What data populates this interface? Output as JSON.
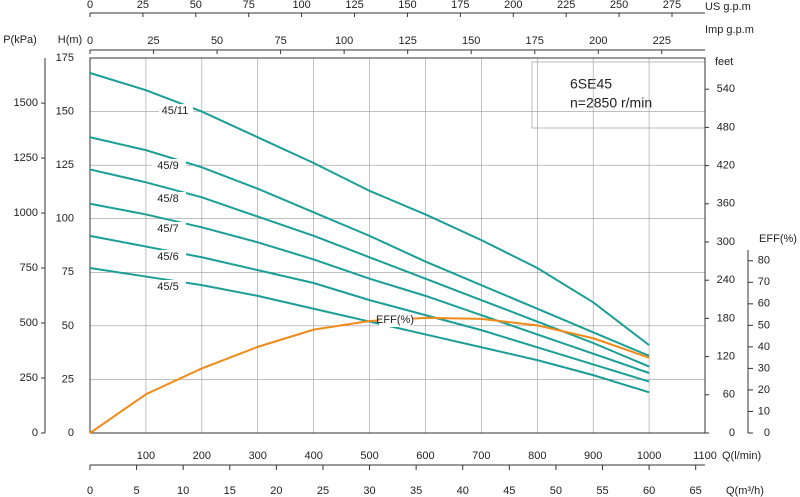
{
  "chart_data": {
    "type": "line",
    "xlabel": "Q(l/min)",
    "ylabel": "H(m)",
    "x": [
      0,
      100,
      200,
      300,
      400,
      500,
      600,
      700,
      800,
      900,
      1000
    ],
    "xlim": [
      0,
      1100
    ],
    "xticks": [
      100,
      200,
      300,
      400,
      500,
      600,
      700,
      800,
      900,
      1000,
      1100
    ],
    "ylim": [
      0,
      175
    ],
    "yticks": [
      0,
      25,
      50,
      75,
      100,
      125,
      150,
      175
    ],
    "grid": true,
    "series": [
      {
        "name": "45/11",
        "color": "#1a9e96",
        "values": [
          168,
          160,
          150,
          138,
          126,
          113,
          102,
          90,
          77,
          61,
          41
        ]
      },
      {
        "name": "45/9",
        "color": "#1a9e96",
        "values": [
          138,
          132,
          124,
          114,
          103,
          92,
          80,
          69,
          58,
          47,
          36
        ]
      },
      {
        "name": "45/8",
        "color": "#1a9e96",
        "values": [
          123,
          117,
          110,
          101,
          92,
          82,
          72,
          62,
          52,
          42,
          31
        ]
      },
      {
        "name": "45/7",
        "color": "#1a9e96",
        "values": [
          107,
          102,
          96,
          89,
          81,
          72,
          64,
          55,
          46,
          37,
          28
        ]
      },
      {
        "name": "45/6",
        "color": "#1a9e96",
        "values": [
          92,
          87,
          82,
          76,
          70,
          62,
          55,
          48,
          40,
          32,
          24
        ]
      },
      {
        "name": "45/5",
        "color": "#1a9e96",
        "values": [
          77,
          73,
          69,
          64,
          58,
          52,
          46,
          40,
          34,
          27,
          19
        ]
      },
      {
        "name": "EFF(%)",
        "color": "#f08a1a",
        "axis": "y2",
        "values": [
          0,
          18,
          30,
          40,
          48,
          52,
          53.5,
          53,
          50,
          44,
          35
        ]
      }
    ],
    "y2label": "EFF(%)",
    "y2lim": [
      0,
      85
    ],
    "y2ticks": [
      0,
      10,
      20,
      30,
      40,
      50,
      60,
      70,
      80
    ],
    "p_axis": {
      "label": "P(kPa)",
      "lim": [
        0,
        1705
      ],
      "ticks": [
        0,
        250,
        500,
        750,
        1000,
        1250,
        1500
      ]
    },
    "feet_axis": {
      "label": "feet",
      "lim": [
        0,
        589
      ],
      "ticks": [
        0,
        60,
        120,
        180,
        240,
        300,
        360,
        420,
        480,
        540
      ]
    },
    "us_axis": {
      "label": "US  g.p.m",
      "lim": [
        0,
        290.6
      ],
      "ticks": [
        0,
        25,
        50,
        75,
        100,
        125,
        150,
        175,
        200,
        225,
        250,
        275
      ]
    },
    "imp_axis": {
      "label": "Imp  g.p.m",
      "lim": [
        0,
        242
      ],
      "ticks": [
        0,
        25,
        50,
        75,
        100,
        125,
        150,
        175,
        200,
        225
      ]
    },
    "m3h_axis": {
      "label": "Q(m³/h)",
      "lim": [
        0,
        66
      ],
      "ticks": [
        0,
        5,
        10,
        15,
        20,
        25,
        30,
        35,
        40,
        45,
        50,
        55,
        60,
        65
      ]
    },
    "annotations": [
      "6SE45",
      "n=2850 r/min"
    ]
  }
}
